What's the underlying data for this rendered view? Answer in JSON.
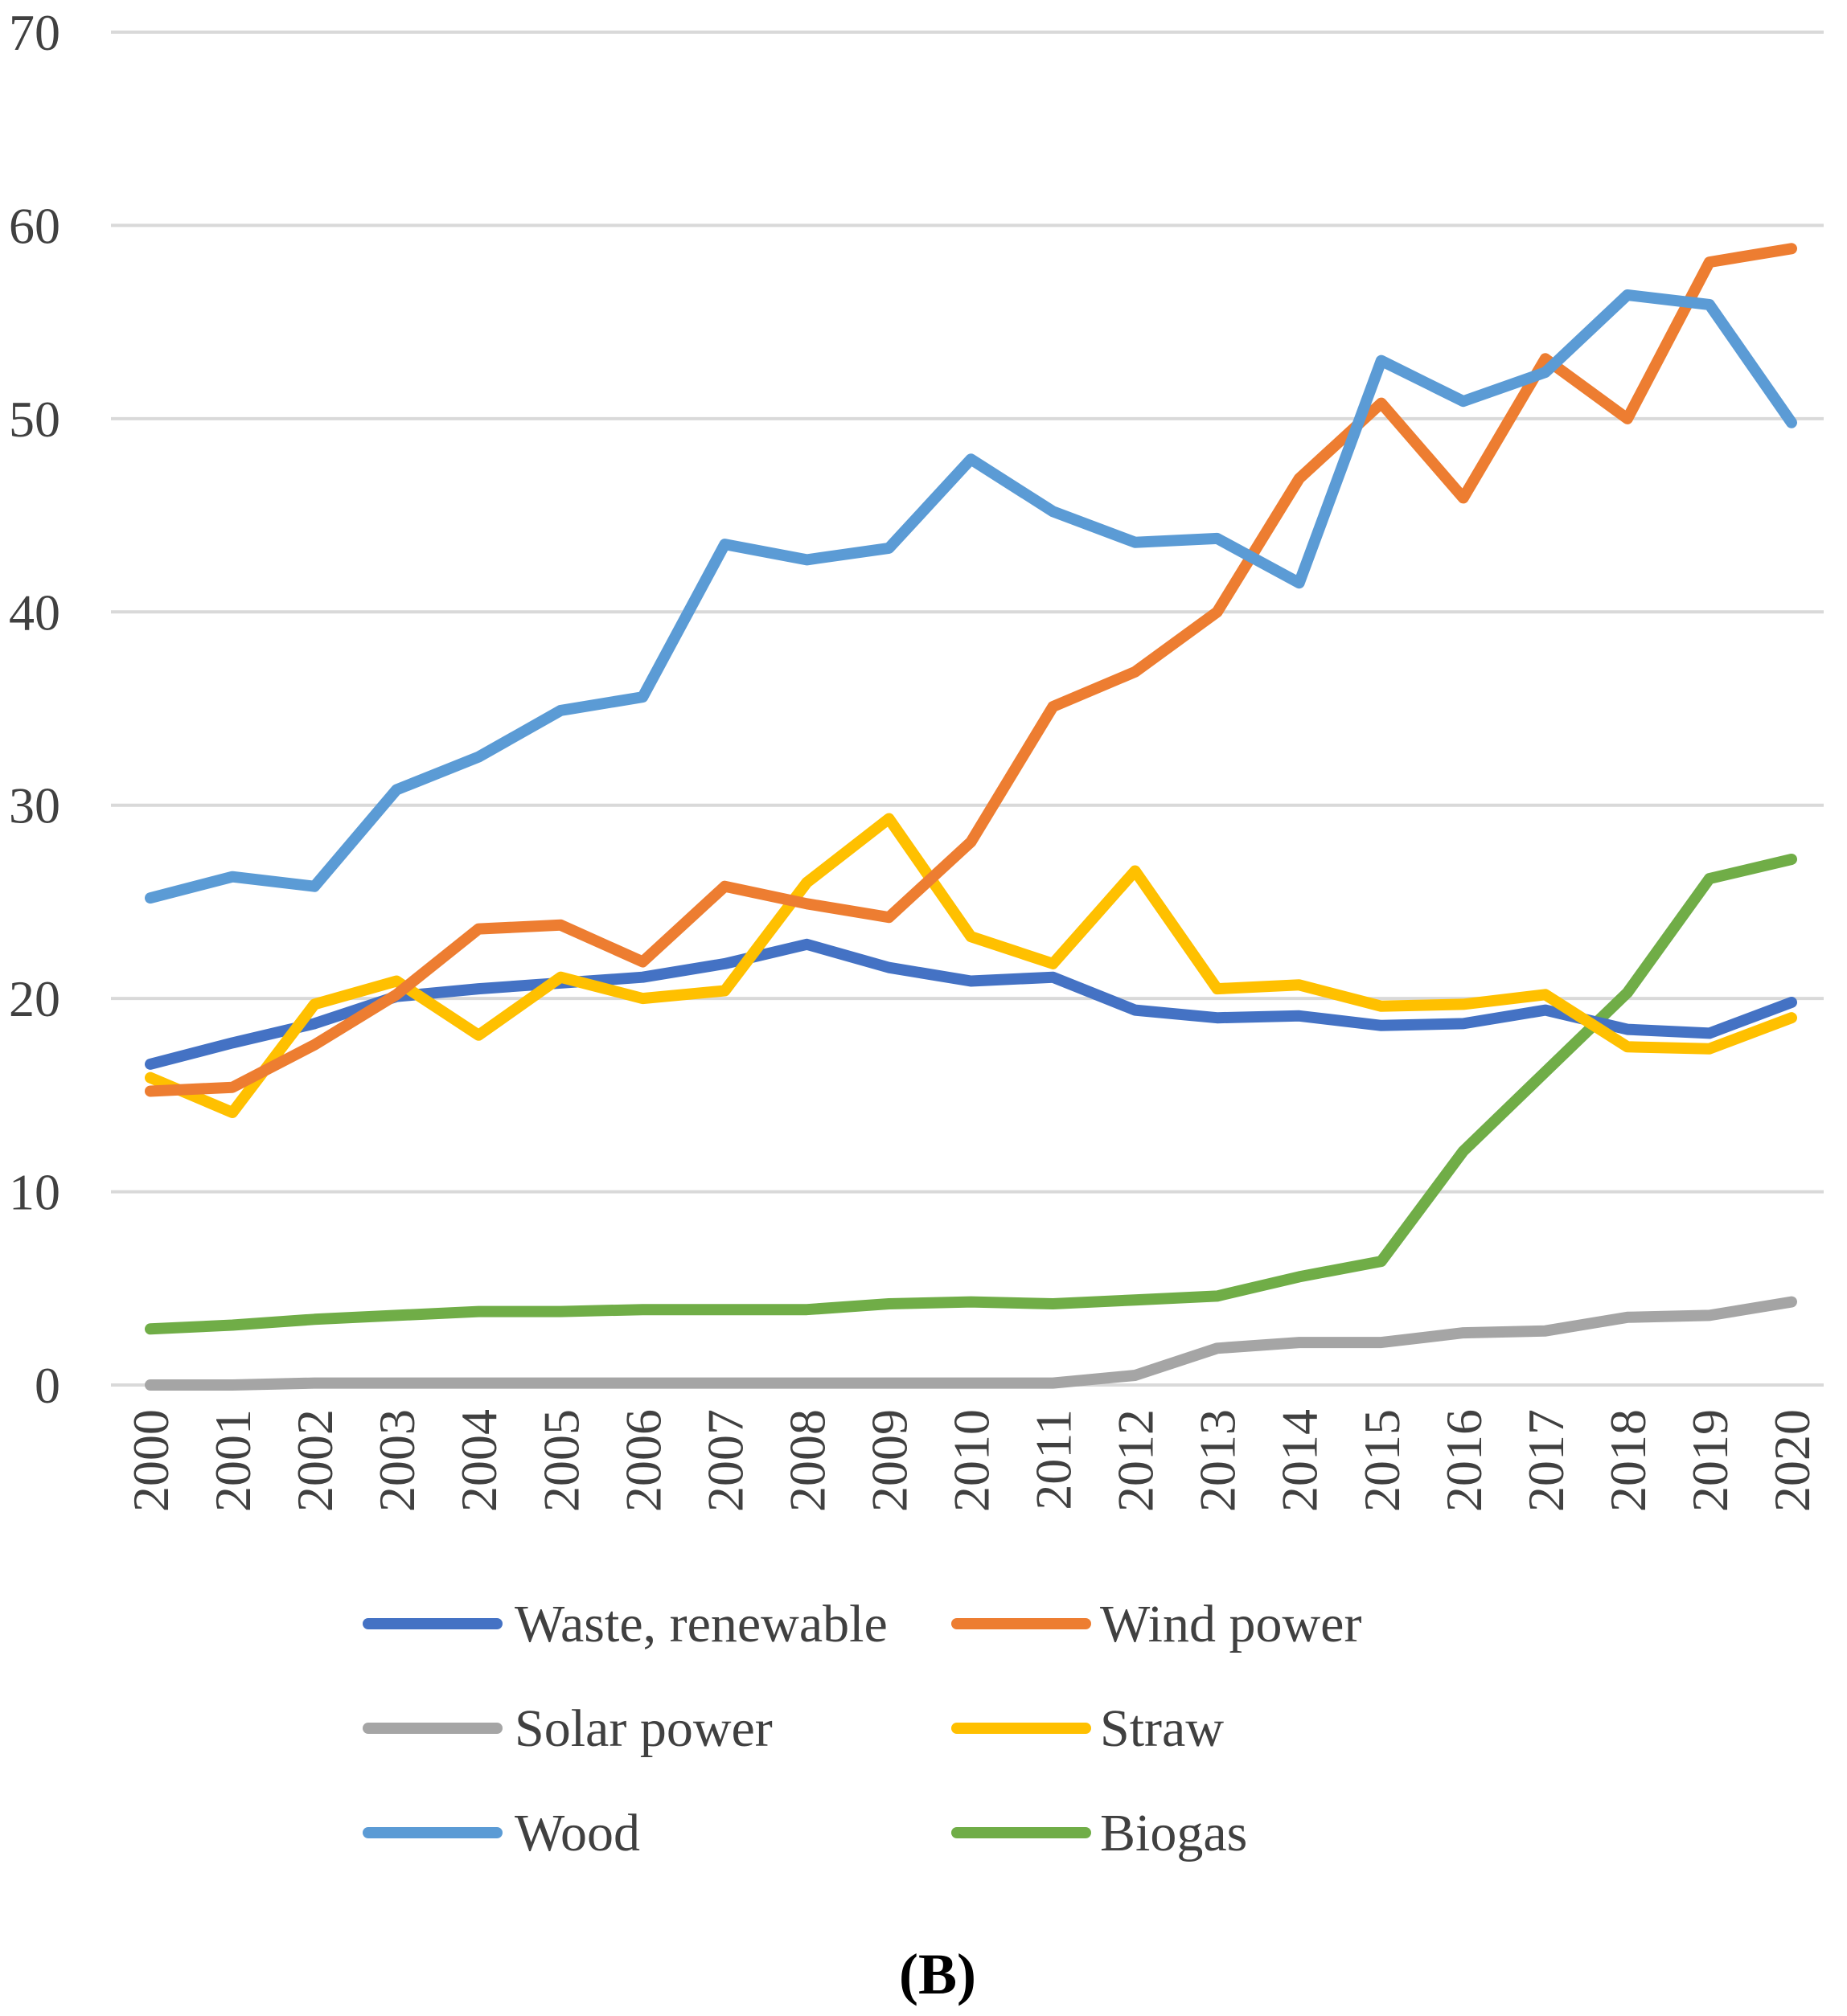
{
  "chart_data": {
    "type": "line",
    "title": "",
    "xlabel": "",
    "ylabel": "",
    "ylim": [
      0,
      70
    ],
    "yticks": [
      "0",
      "10",
      "20",
      "30",
      "40",
      "50",
      "60",
      "70"
    ],
    "grid": true,
    "legend_position": "bottom",
    "panel_label": "(B)",
    "categories": [
      "2000",
      "2001",
      "2002",
      "2003",
      "2004",
      "2005",
      "2006",
      "2007",
      "2008",
      "2009",
      "2010",
      "2011",
      "2012",
      "2013",
      "2014",
      "2015",
      "2016",
      "2017",
      "2018",
      "2019",
      "2020"
    ],
    "series": [
      {
        "name": "Waste, renewable",
        "color": "#4472C4",
        "values": [
          16.6,
          17.7,
          18.7,
          20.1,
          20.5,
          20.8,
          21.1,
          21.8,
          22.8,
          21.6,
          20.9,
          21.1,
          19.4,
          19.0,
          19.1,
          18.6,
          18.7,
          19.4,
          18.4,
          18.2,
          19.8
        ]
      },
      {
        "name": "Wind power",
        "color": "#ED7D31",
        "values": [
          15.2,
          15.4,
          17.6,
          20.2,
          23.6,
          23.8,
          21.9,
          25.8,
          24.9,
          24.2,
          28.1,
          35.1,
          36.9,
          40.0,
          46.9,
          50.8,
          45.9,
          53.1,
          50.0,
          58.1,
          58.8
        ]
      },
      {
        "name": "Solar power",
        "color": "#A5A5A5",
        "values": [
          0.0,
          0.0,
          0.1,
          0.1,
          0.1,
          0.1,
          0.1,
          0.1,
          0.1,
          0.1,
          0.1,
          0.1,
          0.5,
          1.9,
          2.2,
          2.2,
          2.7,
          2.8,
          3.5,
          3.6,
          4.3
        ]
      },
      {
        "name": "Straw",
        "color": "#FFC000",
        "values": [
          15.9,
          14.1,
          19.7,
          20.9,
          18.1,
          21.1,
          20.0,
          20.4,
          26.0,
          29.3,
          23.2,
          21.8,
          26.6,
          20.5,
          20.7,
          19.6,
          19.7,
          20.2,
          17.5,
          17.4,
          19.0
        ]
      },
      {
        "name": "Wood",
        "color": "#5B9BD5",
        "values": [
          25.2,
          26.3,
          25.8,
          30.8,
          32.5,
          34.9,
          35.6,
          43.5,
          42.7,
          43.3,
          47.9,
          45.2,
          43.6,
          43.8,
          41.5,
          53.0,
          50.9,
          52.4,
          56.4,
          55.9,
          49.8
        ]
      },
      {
        "name": "Biogas",
        "color": "#70AD47",
        "values": [
          2.9,
          3.1,
          3.4,
          3.6,
          3.8,
          3.8,
          3.9,
          3.9,
          3.9,
          4.2,
          4.3,
          4.2,
          4.4,
          4.6,
          5.6,
          6.4,
          12.1,
          16.2,
          20.3,
          26.2,
          27.2
        ]
      }
    ]
  }
}
